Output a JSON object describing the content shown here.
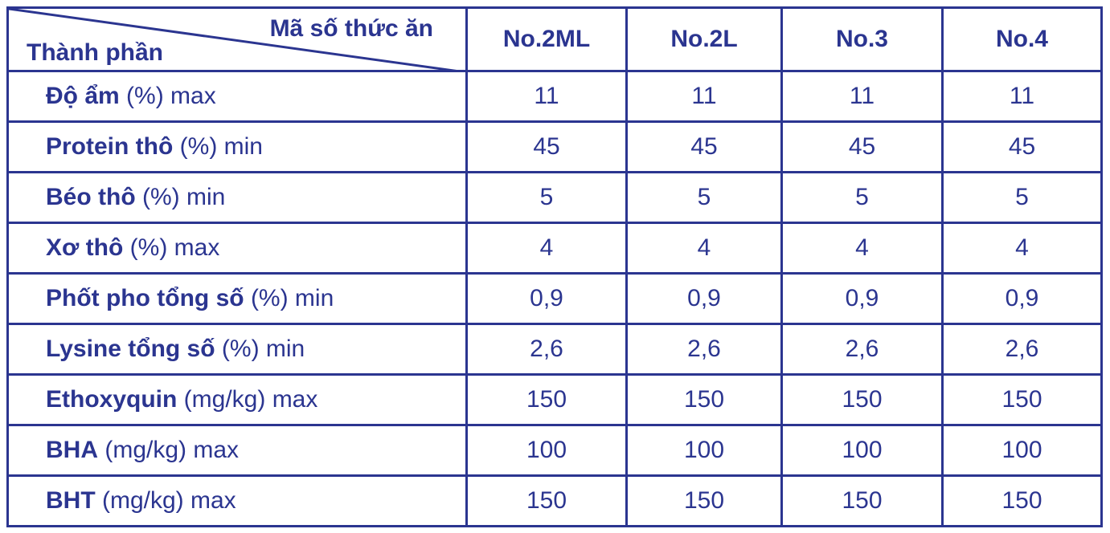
{
  "header": {
    "corner_top": "Mã số thức ăn",
    "corner_bottom": "Thành phần",
    "columns": [
      "No.2ML",
      "No.2L",
      "No.3",
      "No.4"
    ]
  },
  "rows": [
    {
      "bold": "Độ ẩm",
      "rest": " (%) max",
      "values": [
        "11",
        "11",
        "11",
        "11"
      ]
    },
    {
      "bold": "Protein thô",
      "rest": " (%) min",
      "values": [
        "45",
        "45",
        "45",
        "45"
      ]
    },
    {
      "bold": "Béo thô",
      "rest": " (%) min",
      "values": [
        "5",
        "5",
        "5",
        "5"
      ]
    },
    {
      "bold": "Xơ thô",
      "rest": " (%) max",
      "values": [
        "4",
        "4",
        "4",
        "4"
      ]
    },
    {
      "bold": "Phốt pho tổng số",
      "rest": " (%) min",
      "values": [
        "0,9",
        "0,9",
        "0,9",
        "0,9"
      ]
    },
    {
      "bold": "Lysine tổng số",
      "rest": " (%) min",
      "values": [
        "2,6",
        "2,6",
        "2,6",
        "2,6"
      ]
    },
    {
      "bold": "Ethoxyquin",
      "rest": " (mg/kg) max",
      "values": [
        "150",
        "150",
        "150",
        "150"
      ]
    },
    {
      "bold": "BHA",
      "rest": " (mg/kg) max",
      "values": [
        "100",
        "100",
        "100",
        "100"
      ]
    },
    {
      "bold": "BHT",
      "rest": " (mg/kg) max",
      "values": [
        "150",
        "150",
        "150",
        "150"
      ]
    }
  ],
  "colors": {
    "text_and_border": "#2b3590",
    "background": "#ffffff"
  }
}
